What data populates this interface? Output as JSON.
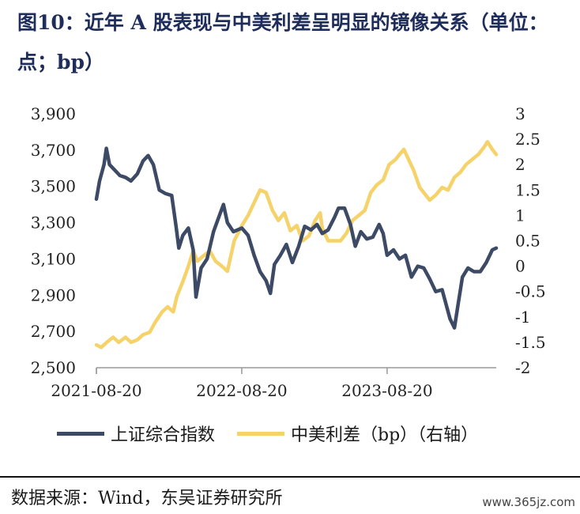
{
  "title": "图10：近年 A 股表现与中美利差呈明显的镜像关系（单位：点；bp）",
  "source": "数据来源：Wind，东吴证券研究所",
  "watermark": "www.365jz.com",
  "chart_data": {
    "type": "line",
    "x_ticks": [
      "2021-08-20",
      "2022-08-20",
      "2023-08-20"
    ],
    "left_axis": {
      "ylim": [
        2500,
        3900
      ],
      "ticks": [
        "2,500",
        "2,700",
        "2,900",
        "3,100",
        "3,300",
        "3,500",
        "3,700",
        "3,900"
      ]
    },
    "right_axis": {
      "ylim": [
        -2,
        3
      ],
      "ticks": [
        "-2",
        "-1.5",
        "-1",
        "-0.5",
        "0",
        "0.5",
        "1",
        "1.5",
        "2",
        "2.5",
        "3"
      ]
    },
    "x_range": [
      "2021-08-20",
      "2024-05-20"
    ],
    "series": [
      {
        "name": "上证综合指数",
        "axis": "left",
        "color": "#3d4a66",
        "points": [
          [
            "2021-08-20",
            3430
          ],
          [
            "2021-08-28",
            3530
          ],
          [
            "2021-09-08",
            3620
          ],
          [
            "2021-09-14",
            3710
          ],
          [
            "2021-09-22",
            3620
          ],
          [
            "2021-10-05",
            3590
          ],
          [
            "2021-10-18",
            3560
          ],
          [
            "2021-11-01",
            3550
          ],
          [
            "2021-11-15",
            3530
          ],
          [
            "2021-12-01",
            3570
          ],
          [
            "2021-12-15",
            3640
          ],
          [
            "2021-12-28",
            3670
          ],
          [
            "2022-01-10",
            3620
          ],
          [
            "2022-01-25",
            3480
          ],
          [
            "2022-02-10",
            3460
          ],
          [
            "2022-02-25",
            3450
          ],
          [
            "2022-03-08",
            3280
          ],
          [
            "2022-03-15",
            3160
          ],
          [
            "2022-03-25",
            3230
          ],
          [
            "2022-04-08",
            3270
          ],
          [
            "2022-04-20",
            3150
          ],
          [
            "2022-04-27",
            2890
          ],
          [
            "2022-05-10",
            3050
          ],
          [
            "2022-05-25",
            3100
          ],
          [
            "2022-06-10",
            3250
          ],
          [
            "2022-06-25",
            3340
          ],
          [
            "2022-07-05",
            3400
          ],
          [
            "2022-07-15",
            3300
          ],
          [
            "2022-07-30",
            3250
          ],
          [
            "2022-08-20",
            3270
          ],
          [
            "2022-09-05",
            3230
          ],
          [
            "2022-09-20",
            3120
          ],
          [
            "2022-10-05",
            3030
          ],
          [
            "2022-10-20",
            2980
          ],
          [
            "2022-10-31",
            2910
          ],
          [
            "2022-11-10",
            3070
          ],
          [
            "2022-11-25",
            3120
          ],
          [
            "2022-12-10",
            3180
          ],
          [
            "2022-12-25",
            3080
          ],
          [
            "2023-01-10",
            3170
          ],
          [
            "2023-01-25",
            3280
          ],
          [
            "2023-02-10",
            3260
          ],
          [
            "2023-02-25",
            3290
          ],
          [
            "2023-03-10",
            3240
          ],
          [
            "2023-03-25",
            3260
          ],
          [
            "2023-04-10",
            3330
          ],
          [
            "2023-04-20",
            3380
          ],
          [
            "2023-05-05",
            3380
          ],
          [
            "2023-05-20",
            3290
          ],
          [
            "2023-06-01",
            3170
          ],
          [
            "2023-06-15",
            3250
          ],
          [
            "2023-06-30",
            3210
          ],
          [
            "2023-07-15",
            3220
          ],
          [
            "2023-07-31",
            3290
          ],
          [
            "2023-08-10",
            3240
          ],
          [
            "2023-08-20",
            3120
          ],
          [
            "2023-09-05",
            3150
          ],
          [
            "2023-09-20",
            3100
          ],
          [
            "2023-10-05",
            3120
          ],
          [
            "2023-10-20",
            3000
          ],
          [
            "2023-11-05",
            3060
          ],
          [
            "2023-11-20",
            3050
          ],
          [
            "2023-12-05",
            2990
          ],
          [
            "2023-12-20",
            2920
          ],
          [
            "2024-01-05",
            2930
          ],
          [
            "2024-01-15",
            2850
          ],
          [
            "2024-01-25",
            2770
          ],
          [
            "2024-02-05",
            2720
          ],
          [
            "2024-02-15",
            2860
          ],
          [
            "2024-02-25",
            3000
          ],
          [
            "2024-03-10",
            3050
          ],
          [
            "2024-03-25",
            3030
          ],
          [
            "2024-04-10",
            3030
          ],
          [
            "2024-04-25",
            3080
          ],
          [
            "2024-05-10",
            3150
          ],
          [
            "2024-05-20",
            3160
          ]
        ]
      },
      {
        "name": "中美利差（bp）（右轴）",
        "axis": "right",
        "color": "#f5d36a",
        "points": [
          [
            "2021-08-20",
            -1.55
          ],
          [
            "2021-09-01",
            -1.6
          ],
          [
            "2021-09-15",
            -1.5
          ],
          [
            "2021-10-01",
            -1.4
          ],
          [
            "2021-10-15",
            -1.5
          ],
          [
            "2021-11-01",
            -1.4
          ],
          [
            "2021-11-15",
            -1.5
          ],
          [
            "2021-12-01",
            -1.45
          ],
          [
            "2021-12-15",
            -1.35
          ],
          [
            "2022-01-01",
            -1.3
          ],
          [
            "2022-01-15",
            -1.1
          ],
          [
            "2022-02-01",
            -0.9
          ],
          [
            "2022-02-15",
            -0.8
          ],
          [
            "2022-03-01",
            -0.9
          ],
          [
            "2022-03-10",
            -0.6
          ],
          [
            "2022-03-25",
            -0.3
          ],
          [
            "2022-04-08",
            0.0
          ],
          [
            "2022-04-20",
            0.3
          ],
          [
            "2022-05-01",
            0.1
          ],
          [
            "2022-05-15",
            0.2
          ],
          [
            "2022-06-01",
            0.3
          ],
          [
            "2022-06-15",
            0.1
          ],
          [
            "2022-07-01",
            0.0
          ],
          [
            "2022-07-15",
            -0.1
          ],
          [
            "2022-08-01",
            0.5
          ],
          [
            "2022-08-20",
            0.8
          ],
          [
            "2022-09-05",
            1.0
          ],
          [
            "2022-09-20",
            1.25
          ],
          [
            "2022-10-05",
            1.5
          ],
          [
            "2022-10-20",
            1.45
          ],
          [
            "2022-11-05",
            1.1
          ],
          [
            "2022-11-20",
            0.9
          ],
          [
            "2022-12-05",
            1.05
          ],
          [
            "2022-12-20",
            0.7
          ],
          [
            "2023-01-05",
            0.8
          ],
          [
            "2023-01-20",
            0.5
          ],
          [
            "2023-02-05",
            0.6
          ],
          [
            "2023-02-20",
            0.9
          ],
          [
            "2023-03-05",
            1.05
          ],
          [
            "2023-03-10",
            0.75
          ],
          [
            "2023-03-25",
            0.5
          ],
          [
            "2023-04-10",
            0.5
          ],
          [
            "2023-04-25",
            0.5
          ],
          [
            "2023-05-10",
            0.65
          ],
          [
            "2023-05-25",
            0.9
          ],
          [
            "2023-06-10",
            1.0
          ],
          [
            "2023-06-25",
            1.1
          ],
          [
            "2023-07-10",
            1.45
          ],
          [
            "2023-07-25",
            1.6
          ],
          [
            "2023-08-10",
            1.7
          ],
          [
            "2023-08-25",
            2.0
          ],
          [
            "2023-09-10",
            2.1
          ],
          [
            "2023-09-20",
            2.2
          ],
          [
            "2023-10-01",
            2.3
          ],
          [
            "2023-10-10",
            2.15
          ],
          [
            "2023-10-25",
            1.9
          ],
          [
            "2023-11-10",
            1.55
          ],
          [
            "2023-11-25",
            1.4
          ],
          [
            "2023-12-05",
            1.3
          ],
          [
            "2023-12-20",
            1.4
          ],
          [
            "2024-01-05",
            1.55
          ],
          [
            "2024-01-20",
            1.5
          ],
          [
            "2024-02-05",
            1.75
          ],
          [
            "2024-02-20",
            1.85
          ],
          [
            "2024-03-05",
            2.0
          ],
          [
            "2024-03-20",
            2.1
          ],
          [
            "2024-04-05",
            2.2
          ],
          [
            "2024-04-20",
            2.35
          ],
          [
            "2024-04-28",
            2.45
          ],
          [
            "2024-05-10",
            2.3
          ],
          [
            "2024-05-20",
            2.2
          ]
        ]
      }
    ],
    "legend_placement": "bottom",
    "grid": false
  }
}
